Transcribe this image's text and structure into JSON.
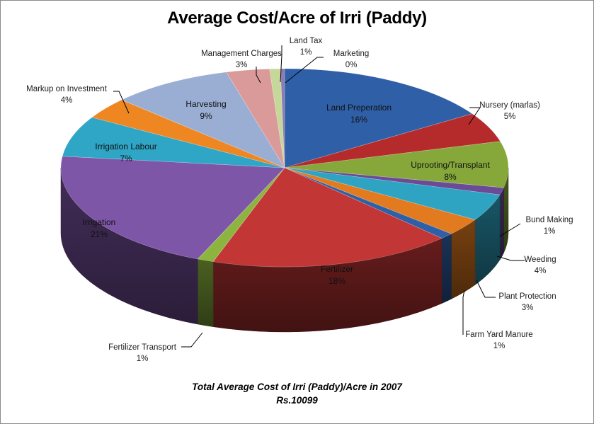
{
  "chart_data": {
    "type": "pie",
    "style": "3d",
    "title": "Average Cost/Acre  of Irri (Paddy)",
    "footnote_line1": "Total Average Cost of Irri (Paddy)/Acre in 2007",
    "footnote_line2": "Rs.10099",
    "slices": [
      {
        "label": "Land Preperation",
        "percent_label": "16%",
        "value": 16.2,
        "color": "#2f5fa7"
      },
      {
        "label": "Nursery (marlas)",
        "percent_label": "5%",
        "value": 5.0,
        "color": "#b52b2b"
      },
      {
        "label": "Uprooting/Transplant",
        "percent_label": "8%",
        "value": 7.7,
        "color": "#86a83a"
      },
      {
        "label": "",
        "percent_label": "",
        "value": 1.2,
        "color": "#6b4a96"
      },
      {
        "label": "",
        "percent_label": "",
        "value": 4.5,
        "color": "#2ea3c2"
      },
      {
        "label": "",
        "percent_label": "",
        "value": 2.9,
        "color": "#e27a1f"
      },
      {
        "label": "",
        "percent_label": "",
        "value": 1.0,
        "color": "#2f5fa7"
      },
      {
        "label": "Fertilizer",
        "percent_label": "18%",
        "value": 18.0,
        "color": "#c23636"
      },
      {
        "label": "",
        "percent_label": "",
        "value": 1.2,
        "color": "#8db43f"
      },
      {
        "label": "Irrigation",
        "percent_label": "21%",
        "value": 21.0,
        "color": "#7e56a8"
      },
      {
        "label": "Irrigation Labour",
        "percent_label": "7%",
        "value": 6.8,
        "color": "#2fa6c6"
      },
      {
        "label": "",
        "percent_label": "",
        "value": 3.6,
        "color": "#ee8622"
      },
      {
        "label": "Harvesting",
        "percent_label": "9%",
        "value": 9.0,
        "color": "#9aaed4"
      },
      {
        "label": "",
        "percent_label": "",
        "value": 3.2,
        "color": "#db9a9a"
      },
      {
        "label": "",
        "percent_label": "",
        "value": 0.8,
        "color": "#c5d89a"
      },
      {
        "label": "",
        "percent_label": "",
        "value": 0.3,
        "color": "#8e7ab5"
      }
    ],
    "callouts": [
      {
        "label": "Nursery (marlas)",
        "percent_label": "5%"
      },
      {
        "label": "Bund Making",
        "percent_label": "1%"
      },
      {
        "label": "Weeding",
        "percent_label": "4%"
      },
      {
        "label": "Plant Protection",
        "percent_label": "3%"
      },
      {
        "label": "Farm Yard Manure",
        "percent_label": "1%"
      },
      {
        "label": "Fertilizer Transport",
        "percent_label": "1%"
      },
      {
        "label": "Markup on Investment",
        "percent_label": "4%"
      },
      {
        "label": "Management Charges",
        "percent_label": "3%"
      },
      {
        "label": "Land Tax",
        "percent_label": "1%"
      },
      {
        "label": "Marketing",
        "percent_label": "0%"
      }
    ]
  }
}
